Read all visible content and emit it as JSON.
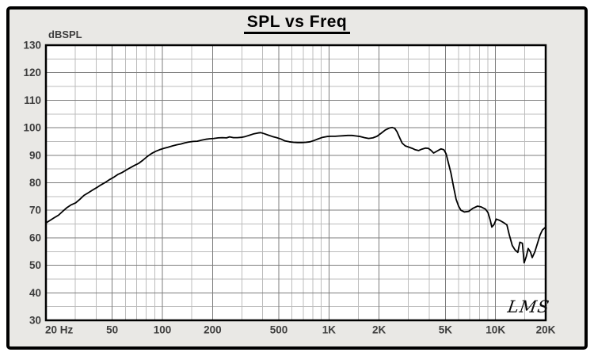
{
  "title": "SPL vs Freq",
  "logo": "LMS",
  "colors": {
    "panel_bg": "#e9e8e5",
    "plot_bg": "#ffffff",
    "grid_major": "#7d7d7d",
    "grid_minor": "#bcbcbc",
    "frame_border": "#000000",
    "plot_border": "#000000",
    "curve": "#000000",
    "tick_label": "#3d3d3d"
  },
  "chart_data": {
    "type": "line",
    "title": "SPL vs Freq",
    "ylabel": "dBSPL",
    "logo": "LMS",
    "x_axis": {
      "scale": "log",
      "min": 20,
      "max": 20000,
      "unit": "Hz",
      "major_ticks": [
        {
          "f": 20,
          "label": "20 Hz",
          "align": "start"
        },
        {
          "f": 50,
          "label": "50"
        },
        {
          "f": 100,
          "label": "100"
        },
        {
          "f": 200,
          "label": "200"
        },
        {
          "f": 500,
          "label": "500"
        },
        {
          "f": 1000,
          "label": "1K"
        },
        {
          "f": 2000,
          "label": "2K"
        },
        {
          "f": 5000,
          "label": "5K"
        },
        {
          "f": 10000,
          "label": "10K"
        },
        {
          "f": 20000,
          "label": "20K"
        }
      ],
      "major_gridlines": [
        50,
        100,
        200,
        500,
        1000,
        2000,
        5000,
        10000
      ],
      "minor_gridlines": [
        30,
        40,
        60,
        70,
        80,
        90,
        150,
        300,
        400,
        600,
        700,
        800,
        900,
        1500,
        3000,
        4000,
        6000,
        7000,
        8000,
        9000,
        15000
      ]
    },
    "y_axis": {
      "min": 30,
      "max": 130,
      "major_step": 10,
      "minor_step": 5,
      "tick_labels": [
        130,
        120,
        110,
        100,
        90,
        80,
        70,
        60,
        50,
        40,
        30
      ],
      "grid": true
    },
    "series": [
      {
        "name": "SPL",
        "color": "#000000",
        "points": [
          [
            20,
            65.4
          ],
          [
            21,
            66.2
          ],
          [
            22.4,
            67.3
          ],
          [
            23.8,
            68.2
          ],
          [
            25.2,
            69.6
          ],
          [
            26.8,
            71.0
          ],
          [
            28.4,
            72.0
          ],
          [
            30.2,
            72.7
          ],
          [
            32,
            74.0
          ],
          [
            33.8,
            75.4
          ],
          [
            36,
            76.4
          ],
          [
            38,
            77.3
          ],
          [
            40.3,
            78.2
          ],
          [
            42.7,
            79.2
          ],
          [
            45.3,
            80.1
          ],
          [
            48,
            81.1
          ],
          [
            51,
            82.0
          ],
          [
            54,
            83.0
          ],
          [
            57.2,
            83.7
          ],
          [
            60.6,
            84.6
          ],
          [
            64.3,
            85.5
          ],
          [
            68.1,
            86.3
          ],
          [
            72.2,
            87.1
          ],
          [
            76.5,
            88.2
          ],
          [
            81,
            89.5
          ],
          [
            86,
            90.6
          ],
          [
            91,
            91.4
          ],
          [
            96,
            92.0
          ],
          [
            102,
            92.5
          ],
          [
            108,
            92.9
          ],
          [
            115,
            93.4
          ],
          [
            122,
            93.8
          ],
          [
            129,
            94.1
          ],
          [
            136,
            94.5
          ],
          [
            144,
            94.8
          ],
          [
            153,
            95.0
          ],
          [
            162,
            95.1
          ],
          [
            172,
            95.5
          ],
          [
            182,
            95.8
          ],
          [
            193,
            96.0
          ],
          [
            204,
            96.1
          ],
          [
            216,
            96.3
          ],
          [
            229,
            96.4
          ],
          [
            243,
            96.3
          ],
          [
            253,
            96.7
          ],
          [
            267,
            96.4
          ],
          [
            282,
            96.4
          ],
          [
            298,
            96.5
          ],
          [
            315,
            96.8
          ],
          [
            334,
            97.3
          ],
          [
            355,
            97.8
          ],
          [
            375,
            98.1
          ],
          [
            390,
            98.2
          ],
          [
            410,
            97.8
          ],
          [
            433,
            97.3
          ],
          [
            458,
            96.8
          ],
          [
            486,
            96.4
          ],
          [
            514,
            95.9
          ],
          [
            545,
            95.2
          ],
          [
            578,
            94.9
          ],
          [
            612,
            94.7
          ],
          [
            648,
            94.6
          ],
          [
            687,
            94.6
          ],
          [
            728,
            94.7
          ],
          [
            771,
            94.9
          ],
          [
            817,
            95.4
          ],
          [
            866,
            96.0
          ],
          [
            917,
            96.5
          ],
          [
            972,
            96.8
          ],
          [
            1029,
            96.9
          ],
          [
            1090,
            96.9
          ],
          [
            1155,
            97.0
          ],
          [
            1224,
            97.1
          ],
          [
            1297,
            97.2
          ],
          [
            1374,
            97.2
          ],
          [
            1456,
            97.0
          ],
          [
            1542,
            96.8
          ],
          [
            1634,
            96.4
          ],
          [
            1731,
            96.1
          ],
          [
            1834,
            96.3
          ],
          [
            1943,
            96.9
          ],
          [
            2059,
            98.0
          ],
          [
            2180,
            99.2
          ],
          [
            2310,
            99.9
          ],
          [
            2400,
            100.1
          ],
          [
            2480,
            99.8
          ],
          [
            2560,
            98.6
          ],
          [
            2650,
            96.5
          ],
          [
            2750,
            94.4
          ],
          [
            2870,
            93.4
          ],
          [
            3000,
            93.0
          ],
          [
            3160,
            92.5
          ],
          [
            3300,
            92.0
          ],
          [
            3450,
            91.7
          ],
          [
            3600,
            92.2
          ],
          [
            3800,
            92.6
          ],
          [
            3950,
            92.5
          ],
          [
            4100,
            91.8
          ],
          [
            4250,
            90.8
          ],
          [
            4450,
            91.5
          ],
          [
            4700,
            92.3
          ],
          [
            4900,
            92.0
          ],
          [
            5050,
            90.5
          ],
          [
            5200,
            87.5
          ],
          [
            5400,
            83.5
          ],
          [
            5600,
            78.5
          ],
          [
            5800,
            74.0
          ],
          [
            6000,
            71.5
          ],
          [
            6200,
            70.0
          ],
          [
            6500,
            69.4
          ],
          [
            6900,
            69.6
          ],
          [
            7300,
            70.7
          ],
          [
            7800,
            71.5
          ],
          [
            8200,
            71.2
          ],
          [
            8700,
            70.4
          ],
          [
            9000,
            69.2
          ],
          [
            9300,
            66.3
          ],
          [
            9500,
            63.9
          ],
          [
            9800,
            64.8
          ],
          [
            10100,
            66.8
          ],
          [
            10600,
            66.3
          ],
          [
            11200,
            65.5
          ],
          [
            11700,
            64.7
          ],
          [
            12100,
            61.0
          ],
          [
            12600,
            57.2
          ],
          [
            13100,
            55.6
          ],
          [
            13600,
            54.7
          ],
          [
            14000,
            58.4
          ],
          [
            14500,
            58.0
          ],
          [
            14850,
            50.9
          ],
          [
            15300,
            53.2
          ],
          [
            15700,
            56.1
          ],
          [
            16200,
            54.8
          ],
          [
            16600,
            52.8
          ],
          [
            17200,
            54.8
          ],
          [
            17700,
            57.2
          ],
          [
            18500,
            61.0
          ],
          [
            19100,
            62.8
          ],
          [
            19800,
            63.7
          ],
          [
            20000,
            63.8
          ]
        ]
      }
    ]
  }
}
